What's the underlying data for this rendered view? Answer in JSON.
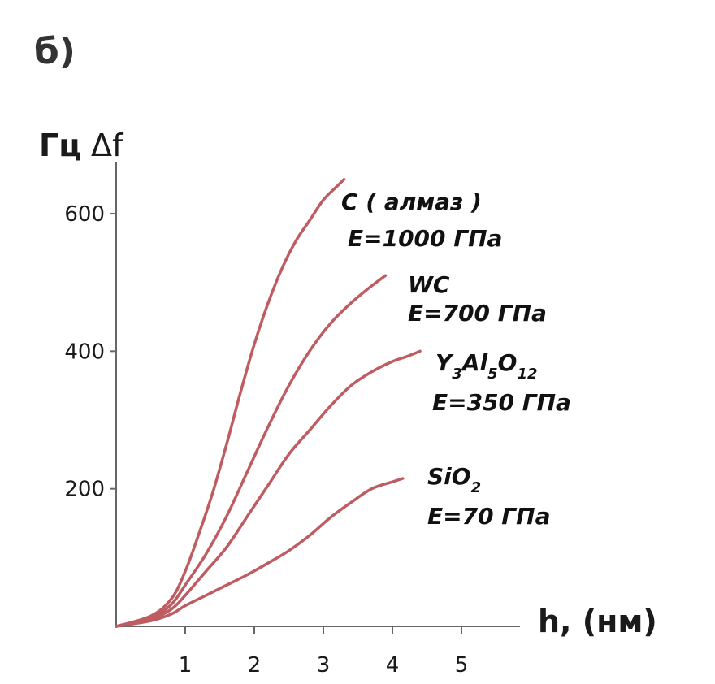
{
  "panel_label": "б)",
  "colors": {
    "curve": "#bf5c62",
    "axis": "#666666",
    "text": "#1a1a1a"
  },
  "chart_data": {
    "type": "line",
    "title": "",
    "ylabel_unit": "Гц",
    "ylabel_symbol": "Δf",
    "xlabel": "h, (нм)",
    "xlim": [
      0,
      5.8
    ],
    "ylim": [
      0,
      660
    ],
    "x_ticks": [
      1,
      2,
      3,
      4,
      5
    ],
    "x_tick_labels": [
      "1",
      "2",
      "3",
      "4",
      "5"
    ],
    "y_ticks": [
      200,
      400,
      600
    ],
    "y_tick_labels": [
      "200",
      "400",
      "600"
    ],
    "grid": false,
    "series": [
      {
        "name": "C ( алмаз )",
        "modulus": "E=1000 ГПа",
        "x": [
          0,
          0.5,
          0.8,
          1.0,
          1.2,
          1.4,
          1.6,
          1.8,
          2.0,
          2.2,
          2.4,
          2.6,
          2.8,
          3.0,
          3.2,
          3.3
        ],
        "y": [
          0,
          15,
          40,
          80,
          135,
          195,
          265,
          340,
          410,
          470,
          520,
          560,
          590,
          620,
          640,
          650
        ]
      },
      {
        "name": "WC",
        "modulus": "E=700 ГПа",
        "x": [
          0,
          0.5,
          0.8,
          1.0,
          1.3,
          1.6,
          1.9,
          2.2,
          2.5,
          2.8,
          3.1,
          3.4,
          3.7,
          3.9
        ],
        "y": [
          0,
          12,
          32,
          60,
          105,
          160,
          225,
          290,
          350,
          400,
          440,
          470,
          495,
          510
        ]
      },
      {
        "name": "Y3Al5O12",
        "modulus": "E=350 ГПа",
        "x": [
          0,
          0.5,
          0.8,
          1.0,
          1.3,
          1.6,
          1.9,
          2.2,
          2.5,
          2.8,
          3.1,
          3.4,
          3.7,
          4.0,
          4.2,
          4.4
        ],
        "y": [
          0,
          10,
          25,
          45,
          80,
          115,
          160,
          205,
          250,
          285,
          320,
          350,
          370,
          385,
          392,
          400
        ]
      },
      {
        "name": "SiO2",
        "modulus": "E=70 ГПа",
        "x": [
          0,
          0.5,
          0.8,
          1.0,
          1.3,
          1.6,
          1.9,
          2.2,
          2.5,
          2.8,
          3.1,
          3.4,
          3.7,
          4.0,
          4.15
        ],
        "y": [
          0,
          8,
          18,
          30,
          45,
          60,
          75,
          92,
          110,
          132,
          158,
          180,
          200,
          210,
          215
        ]
      }
    ],
    "series_labels": [
      {
        "main": "C ( алмаз )"
      },
      {
        "main": "WC"
      },
      {
        "prefix": "Y",
        "sub1": "3",
        "mid1": "Al",
        "sub2": "5",
        "mid2": "O",
        "sub3": "12"
      },
      {
        "prefix": "SiO",
        "sub1": "2"
      }
    ]
  }
}
